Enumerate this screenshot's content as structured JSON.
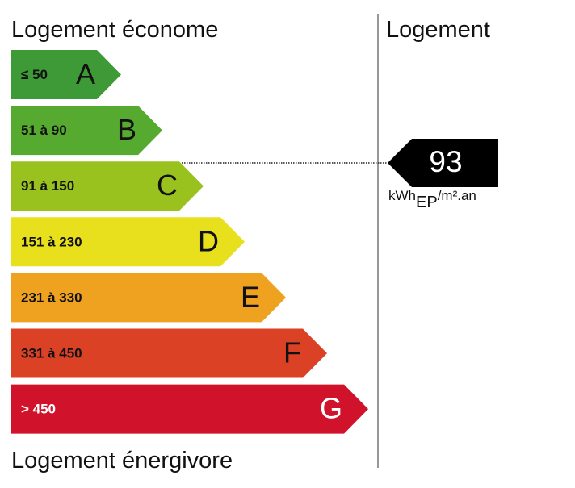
{
  "header": {
    "left": "Logement économe",
    "right": "Logement"
  },
  "bands": [
    {
      "range": "≤ 50",
      "letter": "A",
      "color": "#3d9a36"
    },
    {
      "range": "51 à 90",
      "letter": "B",
      "color": "#56aa2f"
    },
    {
      "range": "91 à 150",
      "letter": "C",
      "color": "#9ac21f"
    },
    {
      "range": "151 à 230",
      "letter": "D",
      "color": "#e8e01d"
    },
    {
      "range": "231 à 330",
      "letter": "E",
      "color": "#efa220"
    },
    {
      "range": "331 à 450",
      "letter": "F",
      "color": "#db4125"
    },
    {
      "range": "> 450",
      "letter": "G",
      "color": "#d0122a"
    }
  ],
  "footer": "Logement énergivore",
  "indicator": {
    "value": 93,
    "unit": "kWh",
    "subscript": "EP",
    "unit_suffix": "/m².an"
  }
}
